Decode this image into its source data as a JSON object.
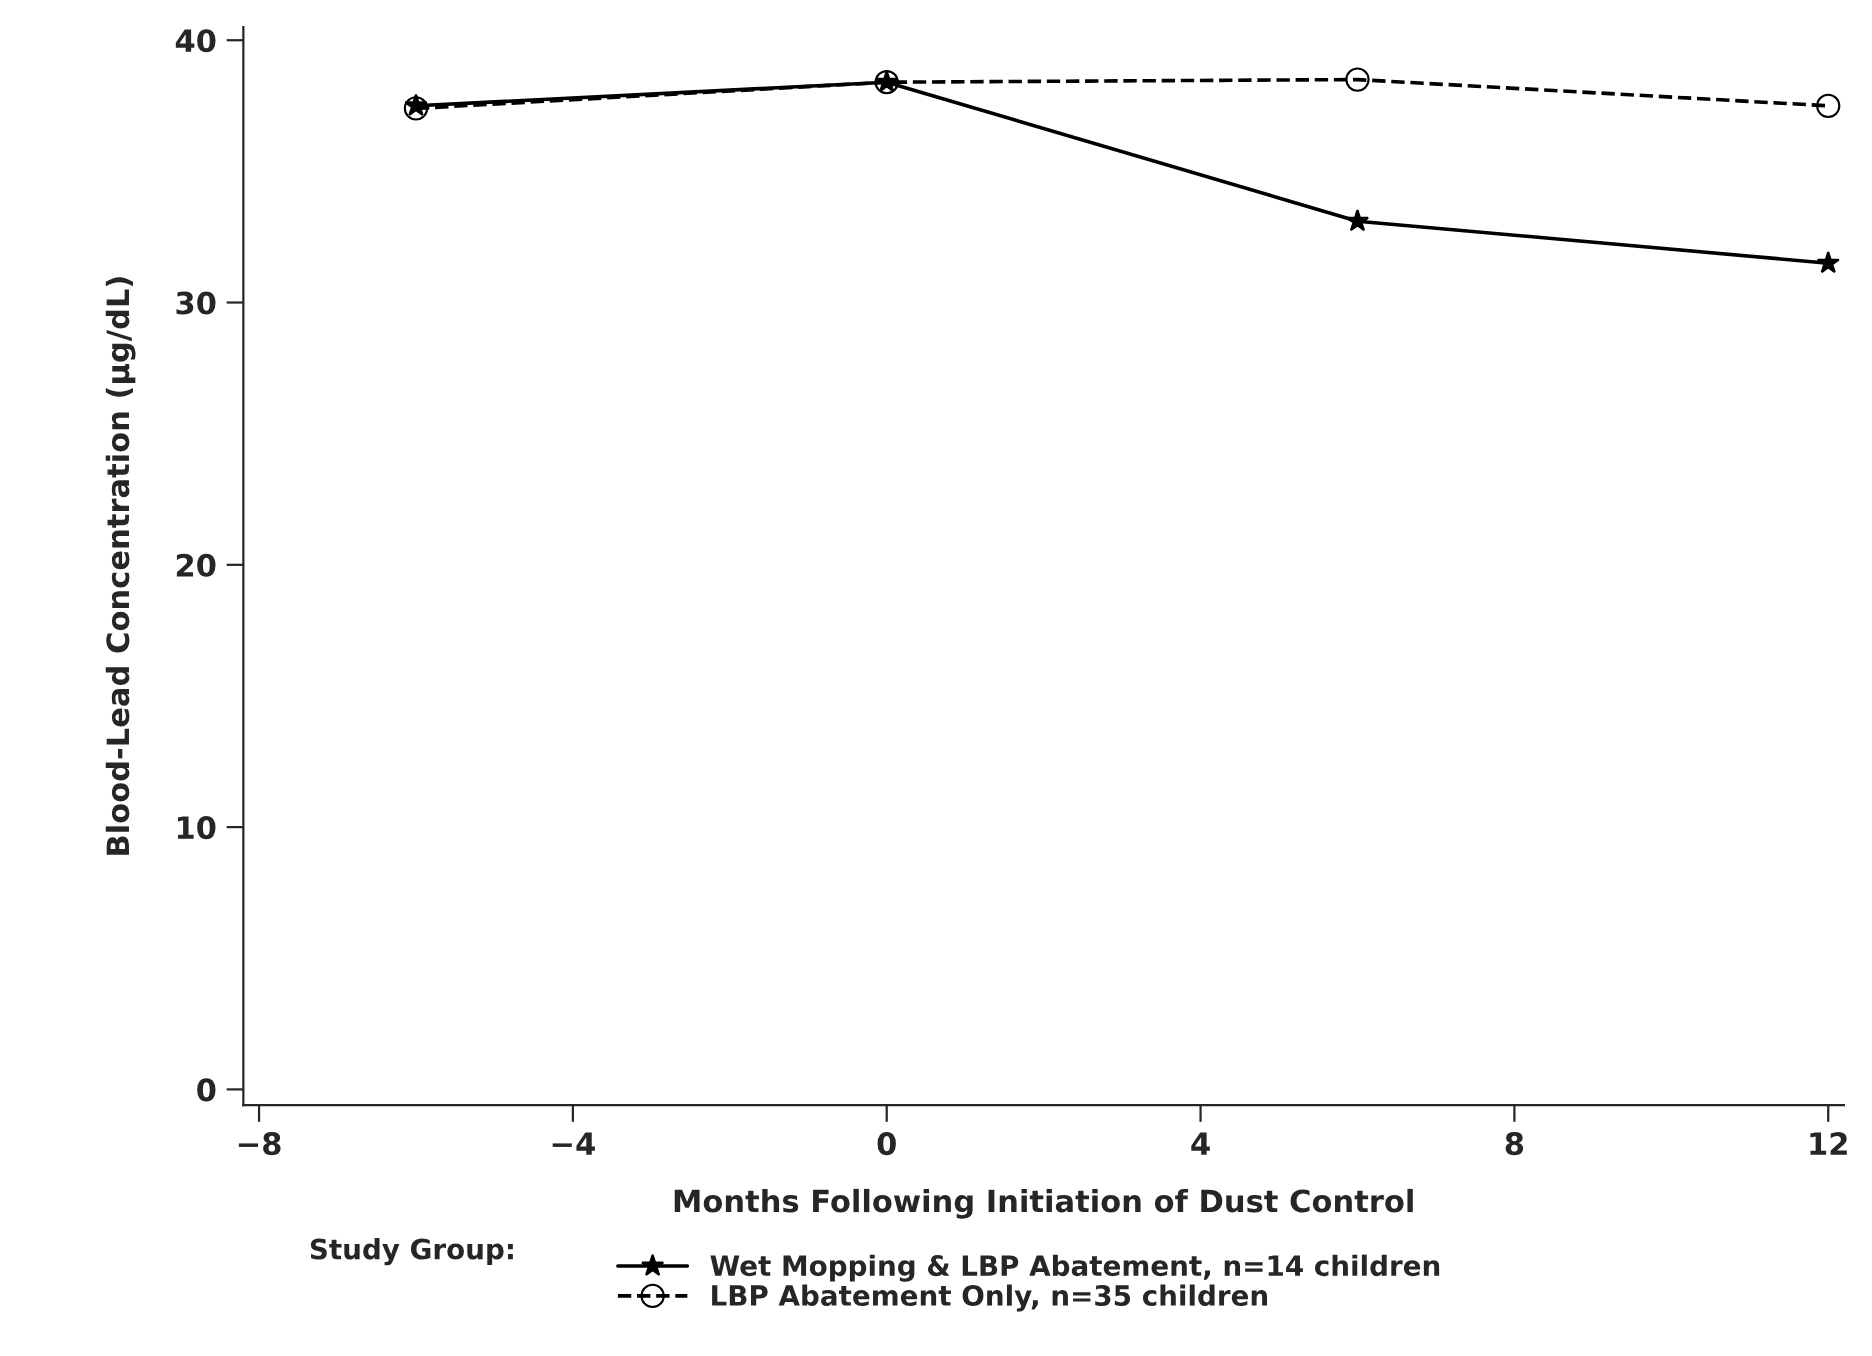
{
  "chart_data": {
    "type": "line",
    "xlabel": "Months Following Initiation of Dust Control",
    "ylabel": "Blood-Lead Concentration (µg/dL)",
    "legend_title": "Study Group:",
    "x": [
      -6,
      0,
      6,
      12
    ],
    "series": [
      {
        "name": "Wet Mopping & LBP Abatement, n=14 children",
        "color": "#000000",
        "values": [
          37.5,
          38.4,
          33.1,
          31.5
        ],
        "marker": "star",
        "line_style": "solid"
      },
      {
        "name": "LBP Abatement Only, n=35 children",
        "color": "#000000",
        "values": [
          37.4,
          38.4,
          38.5,
          37.5
        ],
        "marker": "circle",
        "line_style": "dashed"
      }
    ],
    "xlim": [
      -8.2,
      12.2
    ],
    "xticks": [
      -8,
      -4,
      0,
      4,
      8,
      12
    ],
    "ylim": [
      -0.6,
      40.5
    ],
    "yticks": [
      0,
      10,
      20,
      30,
      40
    ],
    "grid": false,
    "legend": "bottom"
  }
}
